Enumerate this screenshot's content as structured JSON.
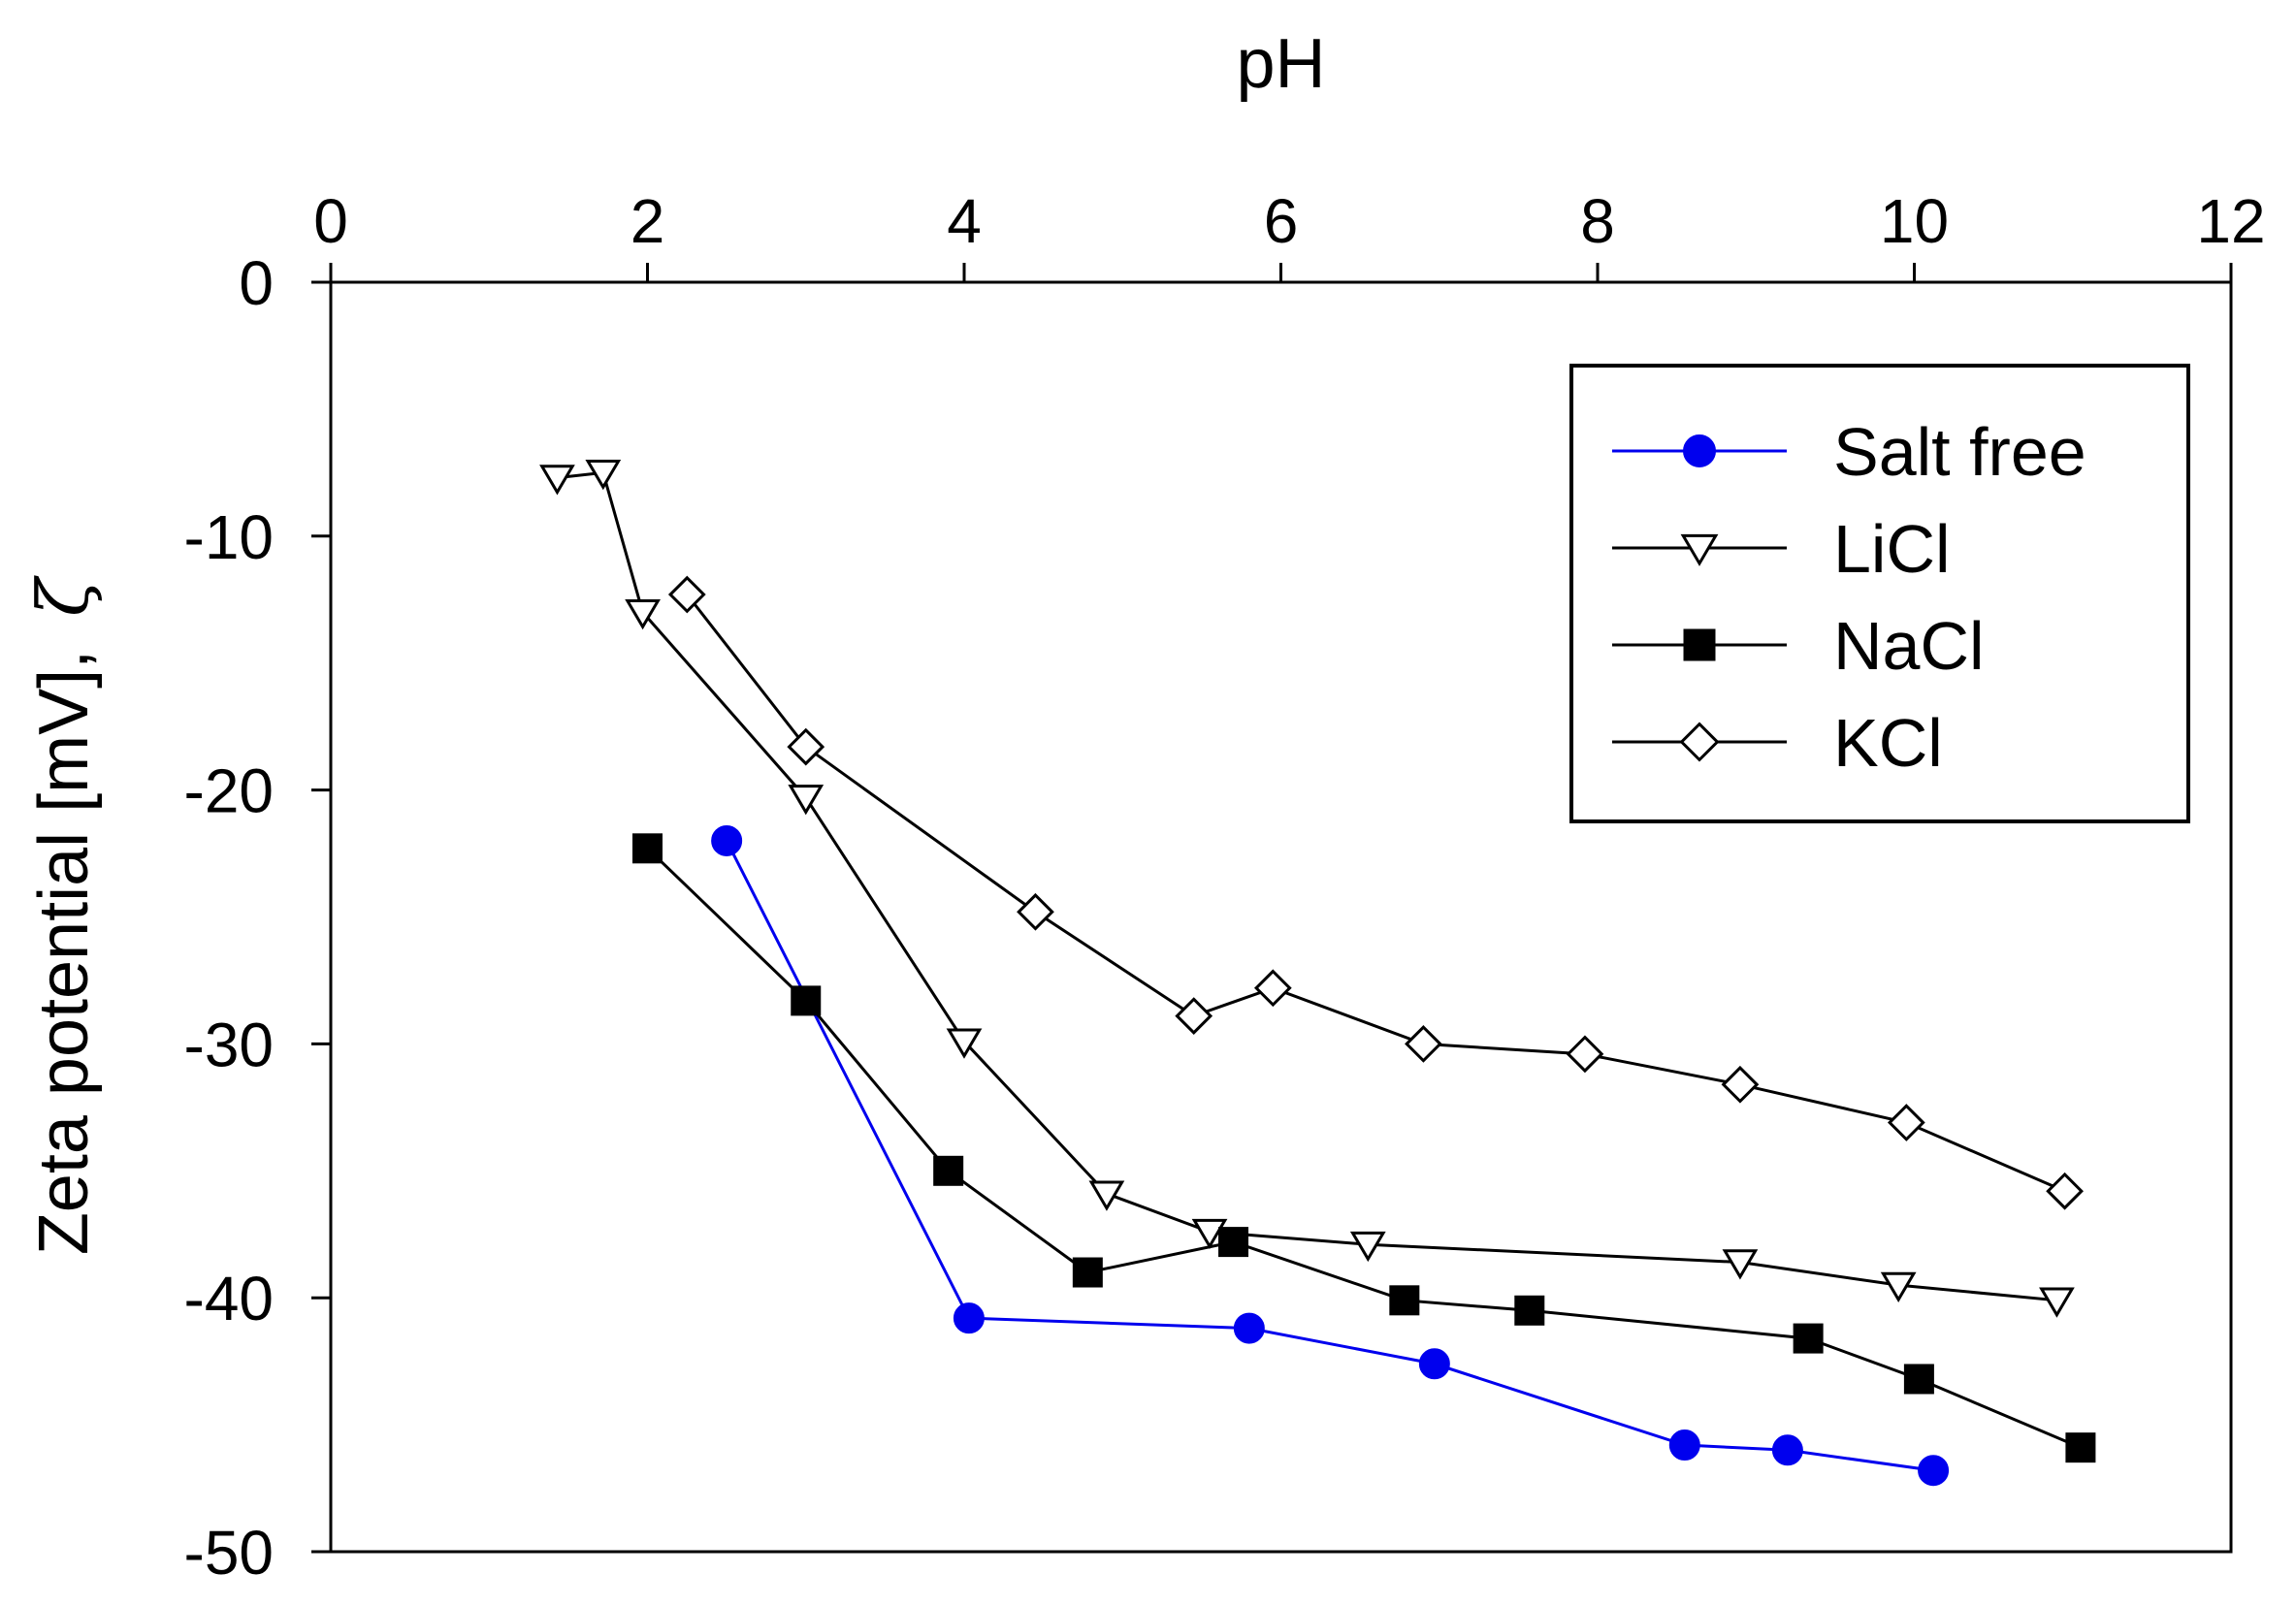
{
  "chart_data": {
    "type": "line",
    "title": "",
    "xlabel": "pH",
    "ylabel": "Zeta potential [mV],",
    "ylabel_symbol": "ζ",
    "xlim": [
      0,
      12
    ],
    "ylim": [
      -50,
      0
    ],
    "xticks": [
      0,
      2,
      4,
      6,
      8,
      10,
      12
    ],
    "yticks": [
      0,
      -10,
      -20,
      -30,
      -40,
      -50
    ],
    "x_axis_position": "top",
    "grid": false,
    "legend_position": "top-right",
    "series": [
      {
        "name": "Salt free",
        "color": "#0000ee",
        "marker": "filled-circle",
        "x": [
          2.5,
          4.03,
          5.8,
          6.97,
          8.55,
          9.2,
          10.12
        ],
        "y": [
          -22.0,
          -40.8,
          -41.2,
          -42.6,
          -45.8,
          -46.0,
          -46.8
        ]
      },
      {
        "name": "LiCl",
        "color": "#000000",
        "marker": "open-triangle-down",
        "x": [
          1.43,
          1.72,
          1.97,
          3.0,
          4.0,
          4.9,
          5.55,
          6.55,
          8.9,
          9.9,
          10.9
        ],
        "y": [
          -7.7,
          -7.5,
          -13.0,
          -20.3,
          -29.9,
          -35.9,
          -37.4,
          -37.9,
          -38.6,
          -39.5,
          -40.1
        ]
      },
      {
        "name": "NaCl",
        "color": "#000000",
        "marker": "filled-square",
        "x": [
          2.0,
          3.0,
          3.9,
          4.78,
          5.7,
          6.78,
          7.57,
          9.33,
          10.03,
          11.05
        ],
        "y": [
          -22.3,
          -28.3,
          -35.0,
          -39.0,
          -37.8,
          -40.1,
          -40.5,
          -41.6,
          -43.2,
          -45.9
        ]
      },
      {
        "name": "KCl",
        "color": "#000000",
        "marker": "open-diamond",
        "x": [
          2.25,
          3.0,
          4.45,
          5.45,
          5.95,
          6.9,
          7.92,
          8.9,
          9.95,
          10.95
        ],
        "y": [
          -12.3,
          -18.3,
          -24.8,
          -28.9,
          -27.8,
          -30.0,
          -30.4,
          -31.6,
          -33.1,
          -35.8
        ]
      }
    ]
  }
}
